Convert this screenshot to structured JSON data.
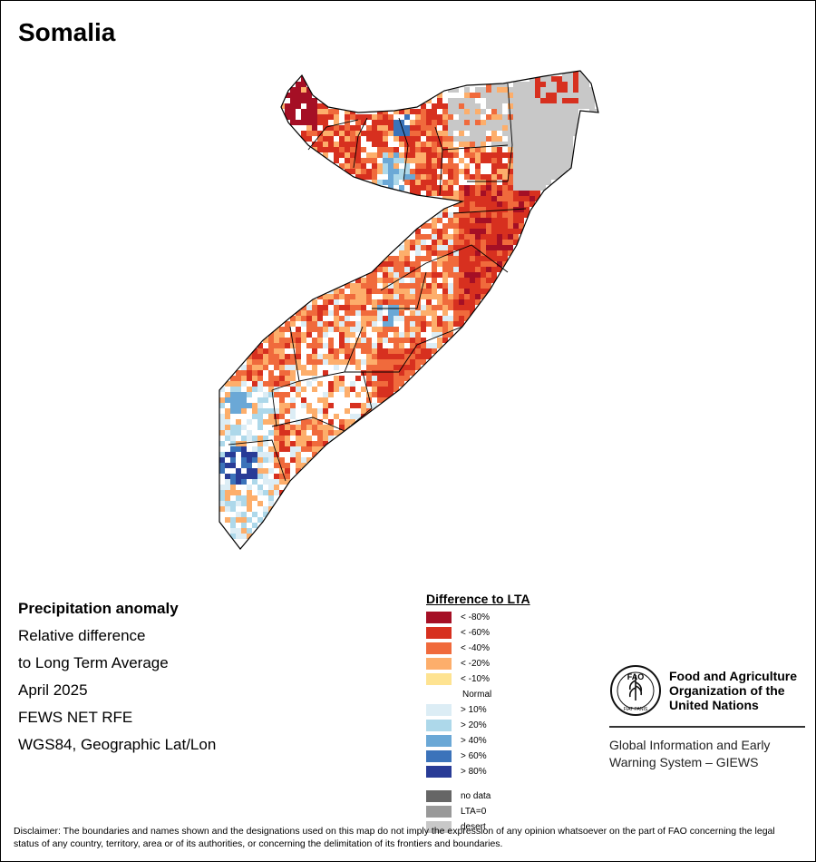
{
  "title": "Somalia",
  "info": {
    "heading": "Precipitation anomaly",
    "line1": "Relative difference",
    "line2": "to Long Term Average",
    "period": "April 2025",
    "source": "FEWS NET RFE",
    "projection": "WGS84, Geographic Lat/Lon"
  },
  "legend": {
    "title": "Difference to LTA",
    "classes": [
      {
        "label": "< -80%",
        "color": "#a50f25"
      },
      {
        "label": "< -60%",
        "color": "#d7301f"
      },
      {
        "label": "< -40%",
        "color": "#f06a3c"
      },
      {
        "label": "< -20%",
        "color": "#fdae6b"
      },
      {
        "label": "< -10%",
        "color": "#fee391"
      },
      {
        "label": "Normal",
        "color": "#ffffff"
      },
      {
        "label": "> 10%",
        "color": "#dcedf5"
      },
      {
        "label": "> 20%",
        "color": "#add8ea"
      },
      {
        "label": "> 40%",
        "color": "#6ba8d6"
      },
      {
        "label": "> 60%",
        "color": "#3b73ba"
      },
      {
        "label": "> 80%",
        "color": "#283b96"
      }
    ],
    "other": [
      {
        "label": "no data",
        "color": "#666666"
      },
      {
        "label": "LTA=0",
        "color": "#999999"
      },
      {
        "label": "desert",
        "color": "#c8c8c8"
      }
    ]
  },
  "fao": {
    "logo_text": "FAO",
    "logo_motto": "FIAT PANIS",
    "org_line1": "Food and Agriculture",
    "org_line2": "Organization of the",
    "org_line3": "United Nations",
    "giews_line1": "Global Information and Early",
    "giews_line2": "Warning System – GIEWS"
  },
  "disclaimer": "Disclaimer: The boundaries and names shown and the designations used on this map do not imply the expression of any opinion whatsoever on the part of FAO concerning the legal status of any country, territory, area or of its authorities, or concerning the delimitation of its frontiers and boundaries.",
  "colors": {
    "desert": "#c8c8c8",
    "dry_extreme": "#a50f25",
    "dry_severe": "#d7301f",
    "dry_moderate": "#f06a3c",
    "dry_light": "#fdae6b",
    "wet_light": "#dcedf5",
    "wet_moderate": "#add8ea",
    "wet_high": "#6ba8d6",
    "wet_very_high": "#3b73ba",
    "wet_extreme": "#283b96"
  }
}
